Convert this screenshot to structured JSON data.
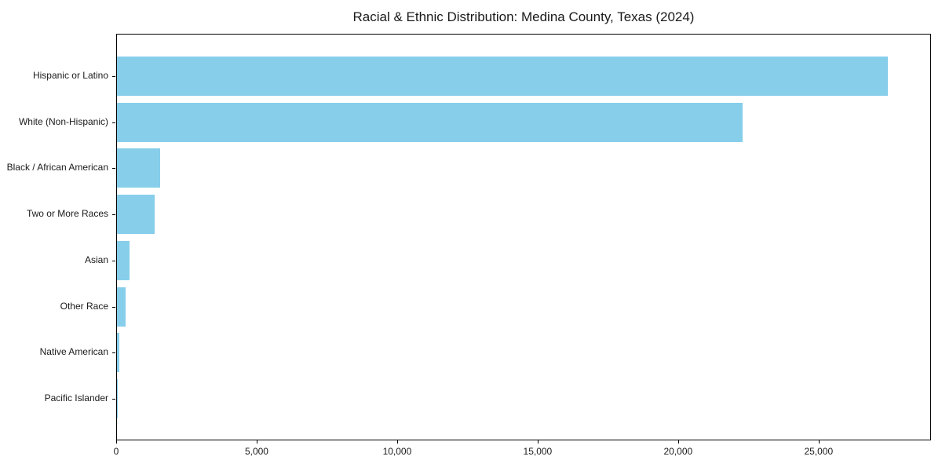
{
  "figure": {
    "title": "Racial & Ethnic Distribution: Medina County, Texas (2024)"
  },
  "chart_data": {
    "type": "bar",
    "orientation": "horizontal",
    "title": "Racial & Ethnic Distribution: Medina County, Texas (2024)",
    "categories": [
      "Hispanic or Latino",
      "White (Non-Hispanic)",
      "Black / African American",
      "Two or More Races",
      "Asian",
      "Other Race",
      "Native American",
      "Pacific Islander"
    ],
    "values": [
      27500,
      22300,
      1530,
      1340,
      450,
      310,
      75,
      25
    ],
    "xlabel": "",
    "ylabel": "",
    "xlim": [
      0,
      29000
    ],
    "x_ticks": [
      0,
      5000,
      10000,
      15000,
      20000,
      25000
    ],
    "x_tick_labels": [
      "0",
      "5,000",
      "10,000",
      "15,000",
      "20,000",
      "25,000"
    ],
    "bar_color": "#87CEEB",
    "grid": false,
    "legend_position": "none"
  }
}
